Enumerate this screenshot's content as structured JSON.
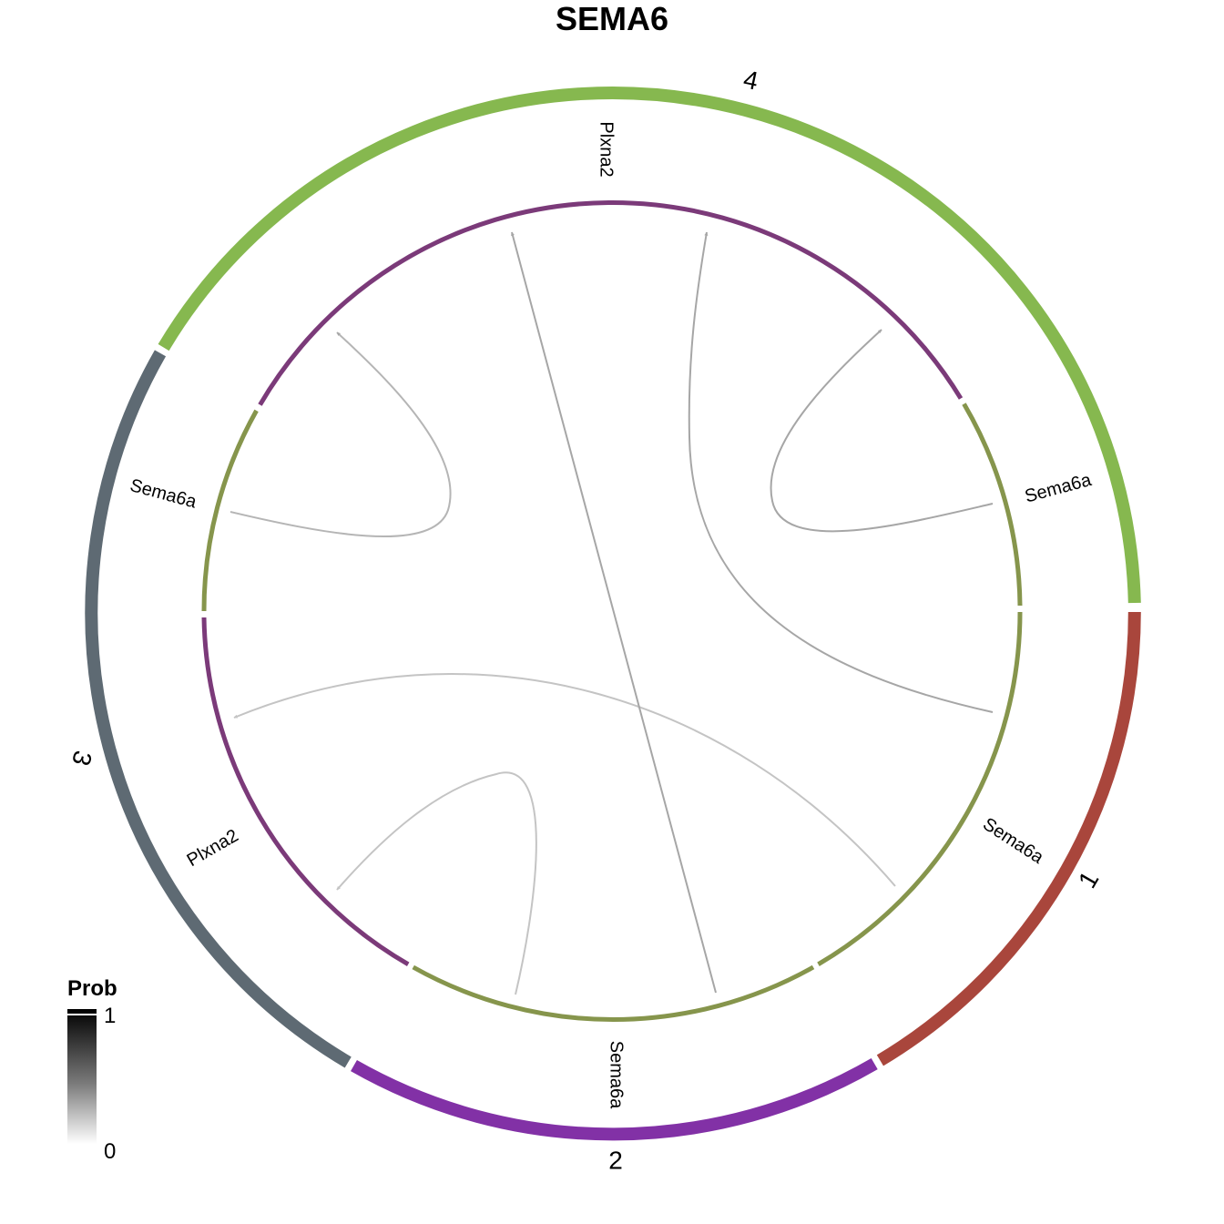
{
  "title": "SEMA6",
  "colors": {
    "group_1": "#a9463c",
    "group_2": "#8231a6",
    "group_3": "#5e6a73",
    "group_4": "#86b84f",
    "ligand_track": "#86954c",
    "receptor_track": "#7b3a79",
    "link": "#a6a6a6"
  },
  "groups": [
    {
      "label": "1"
    },
    {
      "label": "2"
    },
    {
      "label": "3"
    },
    {
      "label": "4"
    }
  ],
  "tracks": [
    {
      "label": "Sema6a",
      "group": "1",
      "role": "ligand"
    },
    {
      "label": "Sema6a",
      "group": "2",
      "role": "ligand"
    },
    {
      "label": "Plxna2",
      "group": "3",
      "role": "receptor"
    },
    {
      "label": "Sema6a",
      "group": "3",
      "role": "ligand"
    },
    {
      "label": "Plxna2",
      "group": "4",
      "role": "receptor"
    },
    {
      "label": "Sema6a",
      "group": "4",
      "role": "ligand"
    }
  ],
  "links": [
    {
      "source": "1",
      "target": "3",
      "prob": 0.25
    },
    {
      "source": "2",
      "target": "3",
      "prob": 0.25
    },
    {
      "source": "2",
      "target": "4",
      "prob": 0.4
    },
    {
      "source": "3",
      "target": "4",
      "prob": 0.35
    },
    {
      "source": "4",
      "target": "4",
      "prob": 0.4
    },
    {
      "source": "4",
      "target": "4",
      "prob": 0.35
    }
  ],
  "legend": {
    "title": "Prob",
    "max_label": "1",
    "min_label": "0",
    "colors": [
      "#000000",
      "#ffffff"
    ]
  }
}
